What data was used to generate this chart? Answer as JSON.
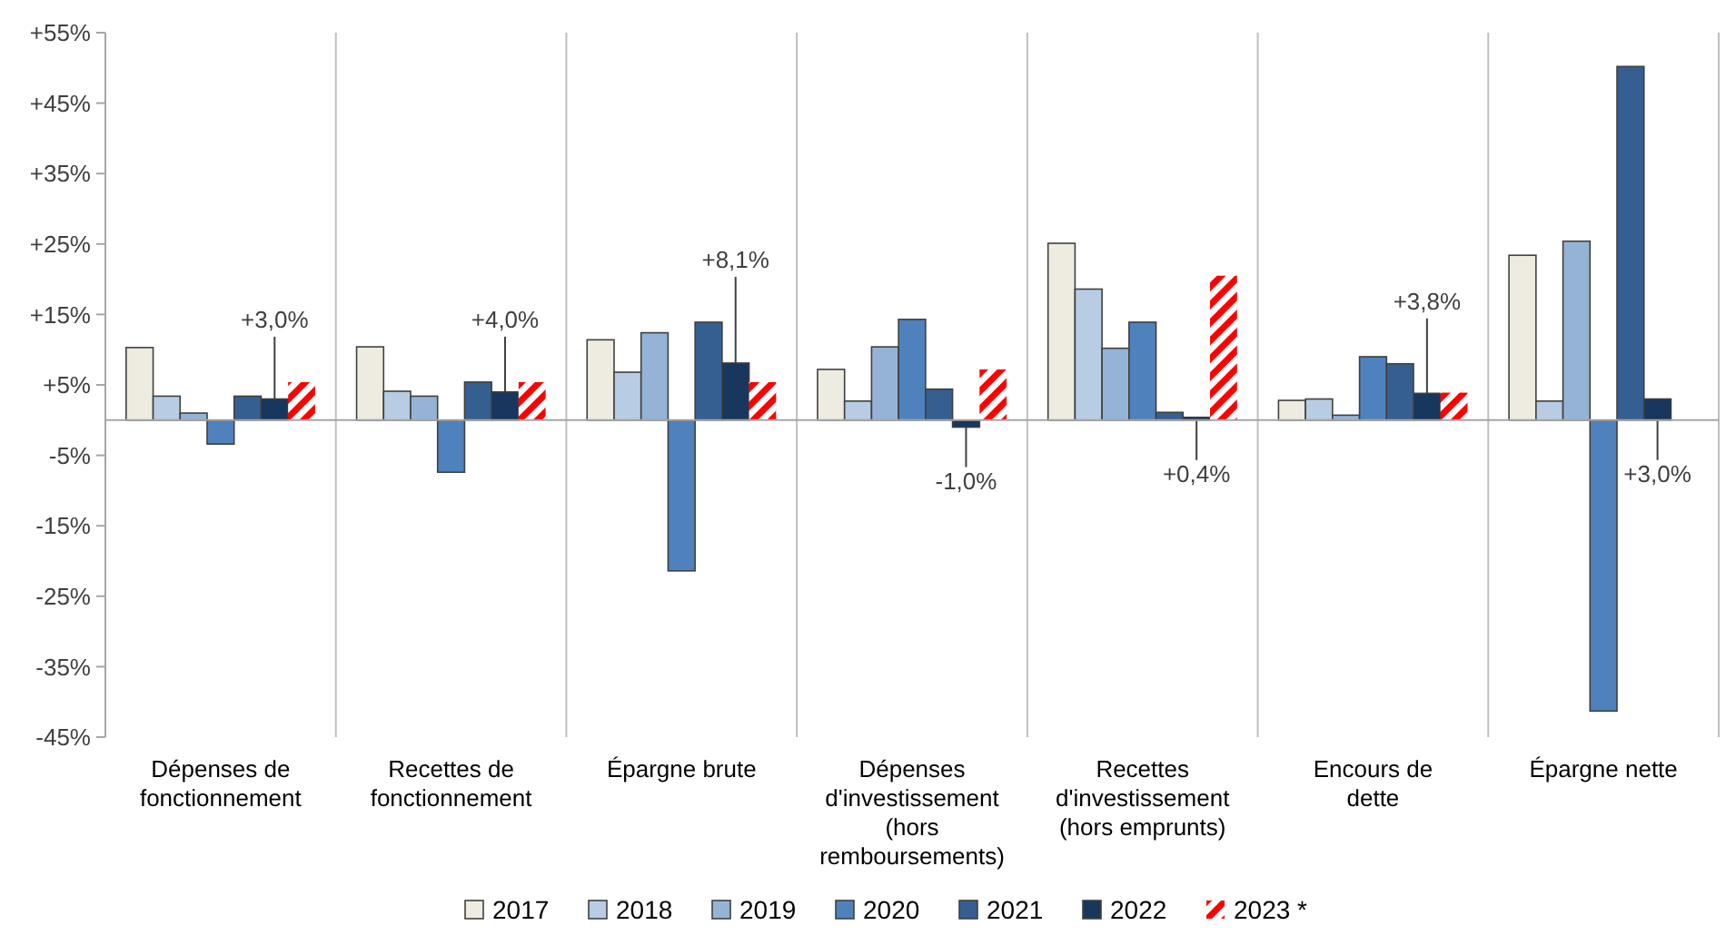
{
  "chart_data": {
    "type": "bar",
    "categories": [
      "Dépenses de fonctionnement",
      "Recettes de fonctionnement",
      "Épargne brute",
      "Dépenses d'investissement (hors remboursements)",
      "Recettes d'investissement (hors emprunts)",
      "Encours de dette",
      "Épargne nette"
    ],
    "series": [
      {
        "name": "2017",
        "color": "#eeebe0",
        "values": [
          10.3,
          10.4,
          11.4,
          7.2,
          25.1,
          2.8,
          23.4
        ]
      },
      {
        "name": "2018",
        "color": "#b8cce4",
        "values": [
          3.4,
          4.1,
          6.8,
          2.7,
          18.6,
          3.0,
          2.7
        ]
      },
      {
        "name": "2019",
        "color": "#95b3d7",
        "values": [
          1.0,
          3.4,
          12.4,
          10.4,
          10.2,
          0.7,
          25.4
        ]
      },
      {
        "name": "2020",
        "color": "#4f81bd",
        "values": [
          -3.4,
          -7.4,
          -21.4,
          14.3,
          13.9,
          9.0,
          -41.3
        ]
      },
      {
        "name": "2021",
        "color": "#365f91",
        "values": [
          3.4,
          5.4,
          13.9,
          4.4,
          1.1,
          8.0,
          50.2
        ]
      },
      {
        "name": "2022",
        "color": "#17375e",
        "values": [
          3.0,
          4.0,
          8.1,
          -1.0,
          0.4,
          3.8,
          3.0
        ],
        "value_labels": [
          "+3,0%",
          "+4,0%",
          "+8,1%",
          "-1,0%",
          "+0,4%",
          "+3,8%",
          "+3,0%"
        ]
      },
      {
        "name": "2023 *",
        "color": "#ff0000",
        "line_style": "dashed",
        "values": [
          5.4,
          5.4,
          5.4,
          7.2,
          20.5,
          3.9,
          null
        ]
      }
    ],
    "ylim": [
      -45,
      55
    ],
    "yticks": [
      {
        "value": -45,
        "label": "-45%"
      },
      {
        "value": -35,
        "label": "-35%"
      },
      {
        "value": -25,
        "label": "-25%"
      },
      {
        "value": -15,
        "label": "-15%"
      },
      {
        "value": -5,
        "label": "-5%"
      },
      {
        "value": 5,
        "label": "+5%"
      },
      {
        "value": 15,
        "label": "+15%"
      },
      {
        "value": 25,
        "label": "+25%"
      },
      {
        "value": 35,
        "label": "+35%"
      },
      {
        "value": 45,
        "label": "+45%"
      },
      {
        "value": 55,
        "label": "+55%"
      }
    ],
    "grid": "x",
    "legend": "bottom"
  }
}
